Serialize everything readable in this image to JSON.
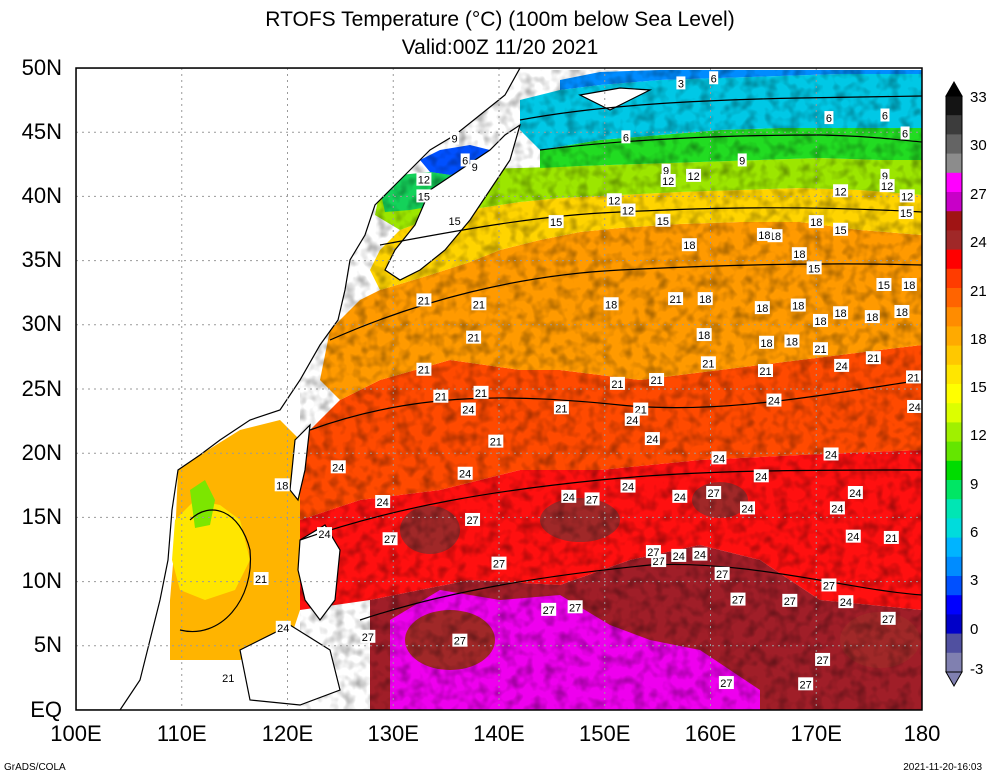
{
  "title": "RTOFS Temperature (°C) (100m below Sea Level)",
  "subtitle": "Valid:00Z 11/20 2021",
  "lat_labels": [
    "50N",
    "45N",
    "40N",
    "35N",
    "30N",
    "25N",
    "20N",
    "15N",
    "10N",
    "5N",
    "EQ"
  ],
  "lon_labels": [
    "100E",
    "110E",
    "120E",
    "130E",
    "140E",
    "150E",
    "160E",
    "170E",
    "180"
  ],
  "colorbar": {
    "labels": [
      "33",
      "30",
      "27",
      "24",
      "21",
      "18",
      "15",
      "12",
      "9",
      "6",
      "3",
      "0",
      "-3"
    ],
    "colors": [
      "#141414",
      "#3c3c3c",
      "#646464",
      "#8c8c8c",
      "#ff00ff",
      "#c800c8",
      "#a01414",
      "#a02828",
      "#ff0000",
      "#ff3c00",
      "#ff6400",
      "#ff8c00",
      "#ffaa00",
      "#ffc800",
      "#ffe600",
      "#ffff00",
      "#dcff00",
      "#a0f000",
      "#64e600",
      "#00dc00",
      "#00e664",
      "#00e6b4",
      "#00dcdc",
      "#00b4ff",
      "#008cff",
      "#0050ff",
      "#0000ff",
      "#0000c8",
      "#5050a0",
      "#8080b0"
    ]
  },
  "contour_labels": [
    {
      "v": "3",
      "lon": 157.2,
      "lat": 48.8
    },
    {
      "v": "6",
      "lon": 171.2,
      "lat": 46.1
    },
    {
      "v": "6",
      "lon": 152.0,
      "lat": 44.6
    },
    {
      "v": "6",
      "lon": 178.4,
      "lat": 44.9
    },
    {
      "v": "9",
      "lon": 155.8,
      "lat": 42.0
    },
    {
      "v": "9",
      "lon": 163.0,
      "lat": 42.8
    },
    {
      "v": "12",
      "lon": 158.4,
      "lat": 41.6
    },
    {
      "v": "12",
      "lon": 150.9,
      "lat": 39.7
    },
    {
      "v": "12",
      "lon": 152.2,
      "lat": 38.9
    },
    {
      "v": "15",
      "lon": 145.4,
      "lat": 38.0
    },
    {
      "v": "15",
      "lon": 155.5,
      "lat": 38.1
    },
    {
      "v": "18",
      "lon": 166.1,
      "lat": 36.9
    },
    {
      "v": "18",
      "lon": 170.0,
      "lat": 38.0
    },
    {
      "v": "15",
      "lon": 172.3,
      "lat": 37.4
    },
    {
      "v": "18",
      "lon": 158.0,
      "lat": 36.2
    },
    {
      "v": "12",
      "lon": 172.3,
      "lat": 40.4
    },
    {
      "v": "9",
      "lon": 176.5,
      "lat": 41.6
    },
    {
      "v": "12",
      "lon": 176.7,
      "lat": 40.8
    },
    {
      "v": "12",
      "lon": 178.6,
      "lat": 40.0
    },
    {
      "v": "15",
      "lon": 178.5,
      "lat": 38.7
    },
    {
      "v": "6",
      "lon": 176.5,
      "lat": 46.3
    },
    {
      "v": "6",
      "lon": 160.3,
      "lat": 49.2
    },
    {
      "v": "12",
      "lon": 156.0,
      "lat": 41.2
    },
    {
      "v": "18",
      "lon": 168.4,
      "lat": 35.5
    },
    {
      "v": "18",
      "lon": 165.1,
      "lat": 37.0
    },
    {
      "v": "15",
      "lon": 169.8,
      "lat": 34.4
    },
    {
      "v": "18",
      "lon": 159.5,
      "lat": 32.0
    },
    {
      "v": "18",
      "lon": 164.9,
      "lat": 31.3
    },
    {
      "v": "18",
      "lon": 168.3,
      "lat": 31.5
    },
    {
      "v": "15",
      "lon": 176.4,
      "lat": 33.1
    },
    {
      "v": "18",
      "lon": 178.8,
      "lat": 33.1
    },
    {
      "v": "21",
      "lon": 132.9,
      "lat": 31.9
    },
    {
      "v": "21",
      "lon": 138.1,
      "lat": 31.6
    },
    {
      "v": "21",
      "lon": 137.6,
      "lat": 29.0
    },
    {
      "v": "21",
      "lon": 132.9,
      "lat": 26.5
    },
    {
      "v": "18",
      "lon": 150.6,
      "lat": 31.6
    },
    {
      "v": "21",
      "lon": 156.7,
      "lat": 32.0
    },
    {
      "v": "18",
      "lon": 159.4,
      "lat": 29.2
    },
    {
      "v": "18",
      "lon": 165.3,
      "lat": 28.6
    },
    {
      "v": "18",
      "lon": 167.7,
      "lat": 28.7
    },
    {
      "v": "18",
      "lon": 170.4,
      "lat": 30.3
    },
    {
      "v": "18",
      "lon": 172.3,
      "lat": 30.9
    },
    {
      "v": "18",
      "lon": 175.3,
      "lat": 30.6
    },
    {
      "v": "18",
      "lon": 178.1,
      "lat": 31.0
    },
    {
      "v": "21",
      "lon": 154.9,
      "lat": 25.7
    },
    {
      "v": "21",
      "lon": 159.8,
      "lat": 27.0
    },
    {
      "v": "21",
      "lon": 165.2,
      "lat": 26.4
    },
    {
      "v": "24",
      "lon": 166.0,
      "lat": 24.1
    },
    {
      "v": "21",
      "lon": 170.4,
      "lat": 28.1
    },
    {
      "v": "24",
      "lon": 172.4,
      "lat": 26.8
    },
    {
      "v": "21",
      "lon": 175.4,
      "lat": 27.4
    },
    {
      "v": "21",
      "lon": 179.2,
      "lat": 25.9
    },
    {
      "v": "24",
      "lon": 179.3,
      "lat": 23.6
    },
    {
      "v": "24",
      "lon": 137.1,
      "lat": 23.4
    },
    {
      "v": "21",
      "lon": 134.5,
      "lat": 24.4
    },
    {
      "v": "21",
      "lon": 138.3,
      "lat": 24.7
    },
    {
      "v": "21",
      "lon": 145.9,
      "lat": 23.5
    },
    {
      "v": "21",
      "lon": 151.2,
      "lat": 25.4
    },
    {
      "v": "21",
      "lon": 153.4,
      "lat": 23.4
    },
    {
      "v": "24",
      "lon": 152.6,
      "lat": 22.6
    },
    {
      "v": "24",
      "lon": 154.5,
      "lat": 21.1
    },
    {
      "v": "24",
      "lon": 160.8,
      "lat": 19.6
    },
    {
      "v": "24",
      "lon": 164.8,
      "lat": 18.2
    },
    {
      "v": "24",
      "lon": 171.4,
      "lat": 19.9
    },
    {
      "v": "21",
      "lon": 139.7,
      "lat": 20.9
    },
    {
      "v": "24",
      "lon": 124.8,
      "lat": 18.9
    },
    {
      "v": "24",
      "lon": 136.8,
      "lat": 18.4
    },
    {
      "v": "24",
      "lon": 129.0,
      "lat": 16.2
    },
    {
      "v": "24",
      "lon": 146.6,
      "lat": 16.6
    },
    {
      "v": "27",
      "lon": 148.8,
      "lat": 16.4
    },
    {
      "v": "24",
      "lon": 152.2,
      "lat": 17.4
    },
    {
      "v": "24",
      "lon": 157.1,
      "lat": 16.6
    },
    {
      "v": "27",
      "lon": 160.3,
      "lat": 16.9
    },
    {
      "v": "24",
      "lon": 163.5,
      "lat": 15.7
    },
    {
      "v": "24",
      "lon": 172.0,
      "lat": 15.7
    },
    {
      "v": "24",
      "lon": 173.7,
      "lat": 16.9
    },
    {
      "v": "27",
      "lon": 137.5,
      "lat": 14.8
    },
    {
      "v": "27",
      "lon": 129.7,
      "lat": 13.3
    },
    {
      "v": "24",
      "lon": 123.5,
      "lat": 13.7
    },
    {
      "v": "27",
      "lon": 140.0,
      "lat": 11.4
    },
    {
      "v": "27",
      "lon": 155.1,
      "lat": 11.6
    },
    {
      "v": "24",
      "lon": 157.0,
      "lat": 12.0
    },
    {
      "v": "24",
      "lon": 159.0,
      "lat": 12.1
    },
    {
      "v": "27",
      "lon": 161.1,
      "lat": 10.6
    },
    {
      "v": "27",
      "lon": 167.5,
      "lat": 8.5
    },
    {
      "v": "24",
      "lon": 172.8,
      "lat": 8.4
    },
    {
      "v": "27",
      "lon": 171.2,
      "lat": 9.7
    },
    {
      "v": "24",
      "lon": 173.5,
      "lat": 13.5
    },
    {
      "v": "21",
      "lon": 177.1,
      "lat": 13.4
    },
    {
      "v": "27",
      "lon": 136.3,
      "lat": 5.4
    },
    {
      "v": "27",
      "lon": 127.6,
      "lat": 5.7
    },
    {
      "v": "27",
      "lon": 144.7,
      "lat": 7.8
    },
    {
      "v": "27",
      "lon": 147.2,
      "lat": 8.0
    },
    {
      "v": "27",
      "lon": 154.6,
      "lat": 12.3
    },
    {
      "v": "27",
      "lon": 170.6,
      "lat": 3.9
    },
    {
      "v": "27",
      "lon": 176.8,
      "lat": 7.1
    },
    {
      "v": "27",
      "lon": 162.6,
      "lat": 8.6
    },
    {
      "v": "27",
      "lon": 161.5,
      "lat": 2.1
    },
    {
      "v": "27",
      "lon": 169.0,
      "lat": 2.0
    },
    {
      "v": "21",
      "lon": 114.4,
      "lat": 2.5
    },
    {
      "v": "21",
      "lon": 117.5,
      "lat": 10.2
    },
    {
      "v": "18",
      "lon": 119.5,
      "lat": 17.5
    },
    {
      "v": "24",
      "lon": 119.6,
      "lat": 6.4
    },
    {
      "v": "12",
      "lon": 132.9,
      "lat": 41.3
    },
    {
      "v": "15",
      "lon": 132.9,
      "lat": 40.0
    },
    {
      "v": "15",
      "lon": 135.8,
      "lat": 38.1
    },
    {
      "v": "9",
      "lon": 135.8,
      "lat": 44.5
    },
    {
      "v": "9",
      "lon": 137.7,
      "lat": 42.3
    },
    {
      "v": "6",
      "lon": 136.8,
      "lat": 42.8
    }
  ],
  "footer_left": "GrADS/COLA",
  "footer_right": "2021-11-20-16:03"
}
